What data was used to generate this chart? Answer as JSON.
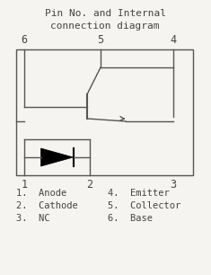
{
  "title_line1": "Pin No. and Internal",
  "title_line2": "connection diagram",
  "bg_color": "#f5f4f0",
  "line_color": "#555555",
  "text_color": "#444444",
  "pin_labels_left": [
    "1.  Anode",
    "2.  Cathode",
    "3.  NC"
  ],
  "pin_labels_right": [
    "4.  Emitter",
    "5.  Collector",
    "6.  Base"
  ],
  "font_size_pins": 7.5,
  "font_size_title": 8.0,
  "font_size_numbers": 8.5,
  "figsize": [
    2.35,
    3.06
  ],
  "dpi": 100
}
